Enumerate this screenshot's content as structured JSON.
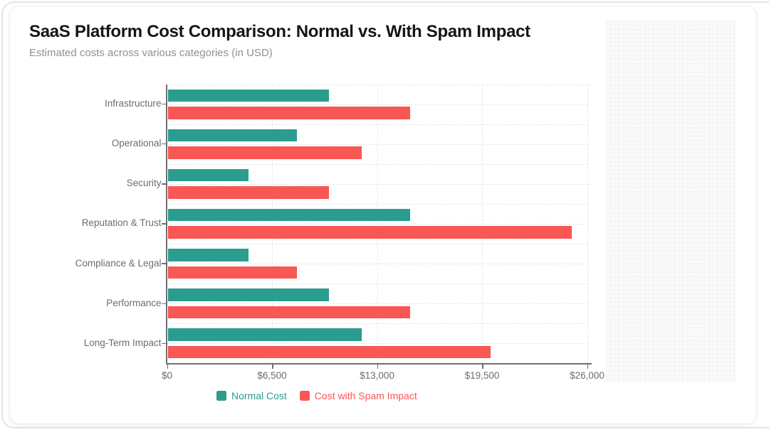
{
  "card": {
    "title": "SaaS Platform Cost Comparison: Normal vs. With Spam Impact",
    "subtitle": "Estimated costs across various categories (in USD)"
  },
  "chart_data": {
    "type": "bar",
    "orientation": "horizontal",
    "title": "SaaS Platform Cost Comparison: Normal vs. With Spam Impact",
    "subtitle": "Estimated costs across various categories (in USD)",
    "categories": [
      "Infrastructure",
      "Operational",
      "Security",
      "Reputation & Trust",
      "Compliance & Legal",
      "Performance",
      "Long-Term Impact"
    ],
    "series": [
      {
        "name": "Normal Cost",
        "color": "#2a9d8f",
        "values": [
          10000,
          8000,
          5000,
          15000,
          5000,
          10000,
          12000
        ]
      },
      {
        "name": "Cost with Spam Impact",
        "color": "#f95753",
        "values": [
          15000,
          12000,
          10000,
          25000,
          8000,
          15000,
          20000
        ]
      }
    ],
    "x_axis": {
      "tick_labels": [
        "$0",
        "$6,500",
        "$13,000",
        "$19,500",
        "$26,000"
      ],
      "tick_values": [
        0,
        6500,
        13000,
        19500,
        26000
      ],
      "min": 0,
      "max": 26000,
      "currency": "USD"
    },
    "grid": {
      "style": "dashed",
      "vertical": true,
      "horizontal": true
    },
    "legend_position": "bottom"
  }
}
